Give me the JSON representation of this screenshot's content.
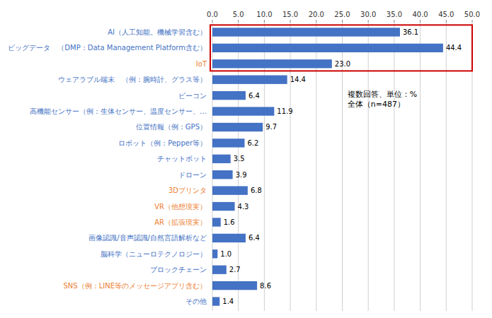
{
  "chart_data": {
    "type": "bar",
    "orientation": "horizontal",
    "categories": [
      "AI（人工知能。機械学習含む）",
      "ビッグデータ　（DMP：Data Management Platform含む）",
      "IoT",
      "ウェアラブル端末　（例：腕時計、グラス等）",
      "ビーコン",
      "高機能センサー（例：生体センサー、温度センサー、…",
      "位置情報（例：GPS）",
      "ロボット（例：Pepper等）",
      "チャットボット",
      "ドローン",
      "3Dプリンタ",
      "VR（他想現実）",
      "AR（拡張現実）",
      "画像認識/音声認識/自然言語解析など",
      "脳科学（ニューロテクノロジー）",
      "ブロックチェーン",
      "SNS（例：LINE等のメッセージアプリ含む）",
      "その他"
    ],
    "values": [
      36.1,
      44.4,
      23.0,
      14.4,
      6.4,
      11.9,
      9.7,
      6.2,
      3.5,
      3.9,
      6.8,
      4.3,
      1.6,
      6.4,
      1.0,
      2.7,
      8.6,
      1.4
    ],
    "value_labels": [
      "36.1",
      "44.4",
      "23.0",
      "14.4",
      "6.4",
      "11.9",
      "9.7",
      "6.2",
      "3.5",
      "3.9",
      "6.8",
      "4.3",
      "1.6",
      "6.4",
      "1.0",
      "2.7",
      "8.6",
      "1.4"
    ],
    "data_labels": true,
    "color": "#4472c4",
    "label_colors": [
      "#4472c4",
      "#4472c4",
      "#ed7d31",
      "#4472c4",
      "#4472c4",
      "#4472c4",
      "#4472c4",
      "#4472c4",
      "#4472c4",
      "#4472c4",
      "#ed7d31",
      "#ed7d31",
      "#ed7d31",
      "#4472c4",
      "#4472c4",
      "#4472c4",
      "#ed7d31",
      "#4472c4"
    ],
    "highlight": {
      "indices": [
        0,
        1,
        2
      ],
      "color": "#cc0000"
    },
    "xlim": [
      0,
      50
    ],
    "xticks": [
      {
        "value": 0,
        "label": "0.0"
      },
      {
        "value": 5,
        "label": "5.0"
      },
      {
        "value": 10,
        "label": "10.0"
      },
      {
        "value": 15,
        "label": "15.0"
      },
      {
        "value": 20,
        "label": "20.0"
      },
      {
        "value": 25,
        "label": "25.0"
      },
      {
        "value": 30,
        "label": "30.0"
      },
      {
        "value": 35,
        "label": "35.0"
      },
      {
        "value": 40,
        "label": "40.0"
      },
      {
        "value": 45,
        "label": "45.0"
      },
      {
        "value": 50,
        "label": "50.0"
      }
    ],
    "grid": true,
    "annotation": {
      "text": "複数回答、単位：%\n全体（n=487）",
      "x": 26,
      "y": 4.2
    }
  }
}
